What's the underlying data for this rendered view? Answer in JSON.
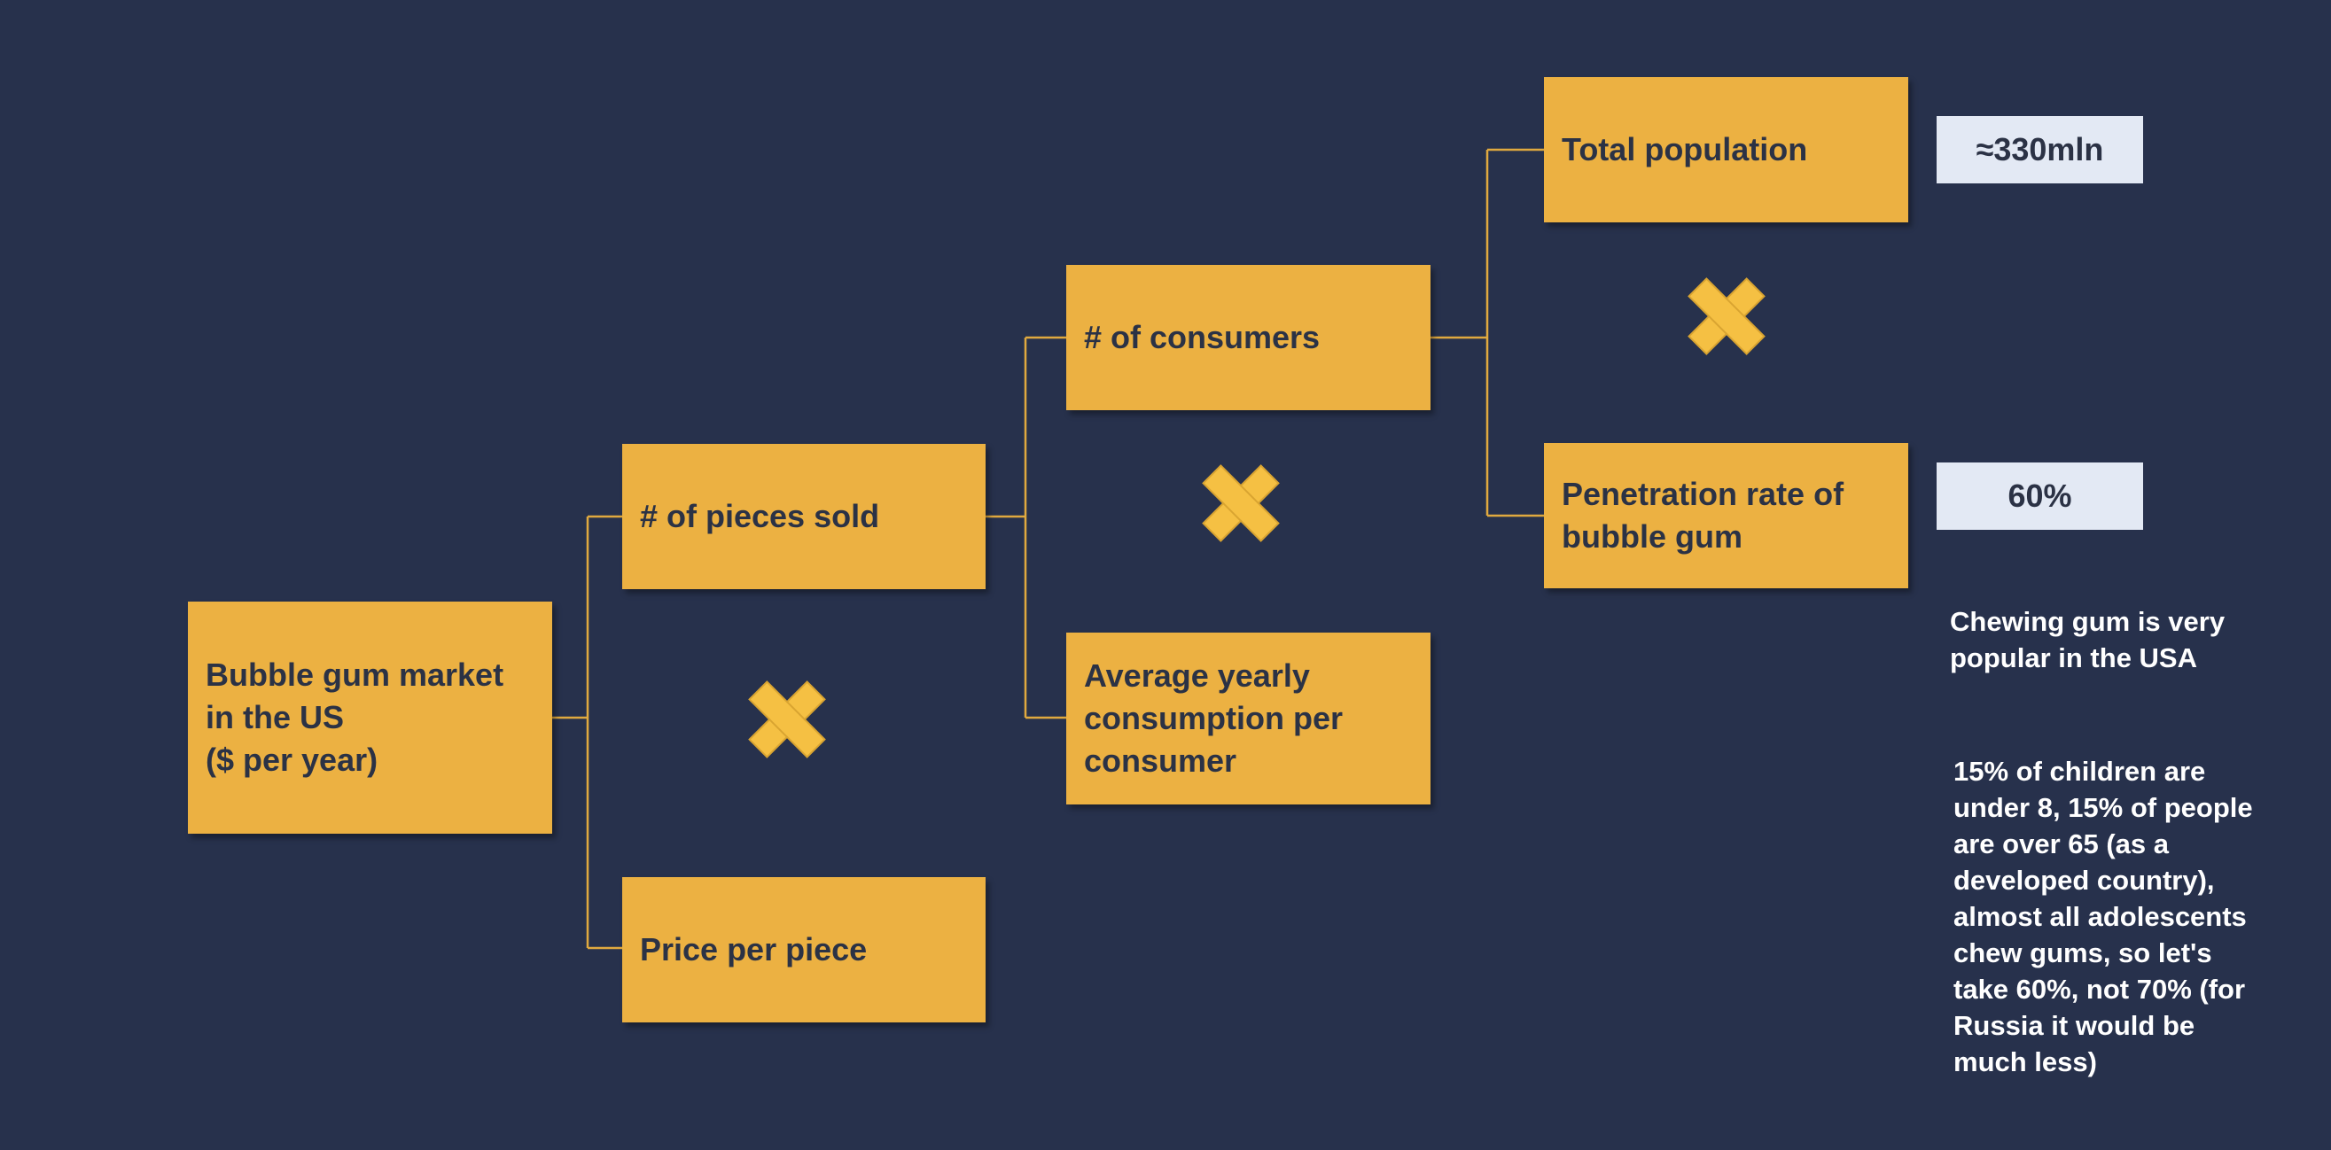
{
  "nodes": {
    "market": [
      "Bubble gum market",
      "in the US",
      "($ per year)"
    ],
    "pieces_sold": "# of pieces sold",
    "price_per_piece": "Price per piece",
    "consumers": "# of consumers",
    "avg_consumption": [
      "Average yearly",
      "consumption per",
      "consumer"
    ],
    "total_population": "Total population",
    "penetration_rate": [
      "Penetration rate of",
      "bubble gum"
    ]
  },
  "values": {
    "total_population": "≈330mln",
    "penetration_rate": "60%"
  },
  "notes": {
    "popularity": [
      "Chewing gum is very",
      "popular in the USA"
    ],
    "penetration_reasoning": [
      "15% of children are",
      "under 8, 15% of people",
      "are over 65 (as a",
      "developed country),",
      "almost all adolescents",
      "chew gums, so let's",
      "take 60%, not 70% (for",
      "Russia it would be",
      "much less)"
    ]
  },
  "icons": {
    "operator": "multiply-icon",
    "operator_color": "#f5c043"
  },
  "colors": {
    "background": "#27314c",
    "node_fill": "#ecb142",
    "value_fill": "#e3e9f4",
    "connector": "#e0a93f"
  }
}
